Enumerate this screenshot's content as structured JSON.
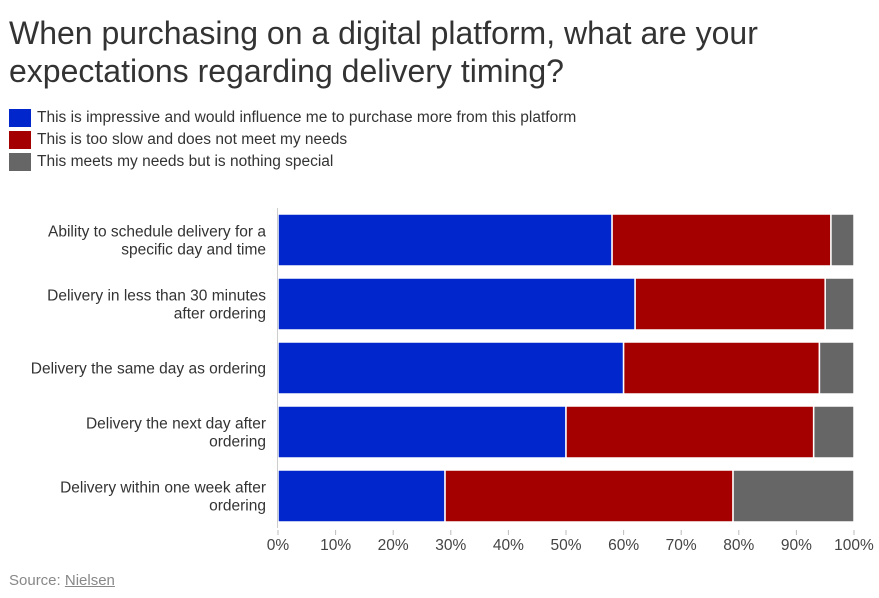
{
  "source": {
    "label": "Source:",
    "link_text": "Nielsen"
  },
  "chart_data": {
    "type": "bar",
    "orientation": "horizontal",
    "stacked": true,
    "title": "When purchasing on a digital platform, what are your expectations regarding delivery timing?",
    "categories": [
      [
        "Ability to schedule delivery for a",
        "specific day and time"
      ],
      [
        "Delivery in less than 30 minutes",
        "after ordering"
      ],
      [
        "Delivery the same day as ordering"
      ],
      [
        "Delivery the next day after",
        "ordering"
      ],
      [
        "Delivery within one week after",
        "ordering"
      ]
    ],
    "series": [
      {
        "name": "This is impressive and would influence me to purchase more from this platform",
        "color": "#0026cc",
        "values": [
          58,
          62,
          60,
          50,
          29
        ]
      },
      {
        "name": "This is too slow and does not meet my needs",
        "color": "#a50000",
        "values": [
          38,
          33,
          34,
          43,
          50
        ]
      },
      {
        "name": "This meets my needs but is nothing special",
        "color": "#666666",
        "values": [
          4,
          5,
          6,
          7,
          21
        ]
      }
    ],
    "xlim": [
      0,
      100
    ],
    "xticks": [
      0,
      10,
      20,
      30,
      40,
      50,
      60,
      70,
      80,
      90,
      100
    ],
    "tick_suffix": "%",
    "legend_position": "top-left",
    "grid": false
  }
}
